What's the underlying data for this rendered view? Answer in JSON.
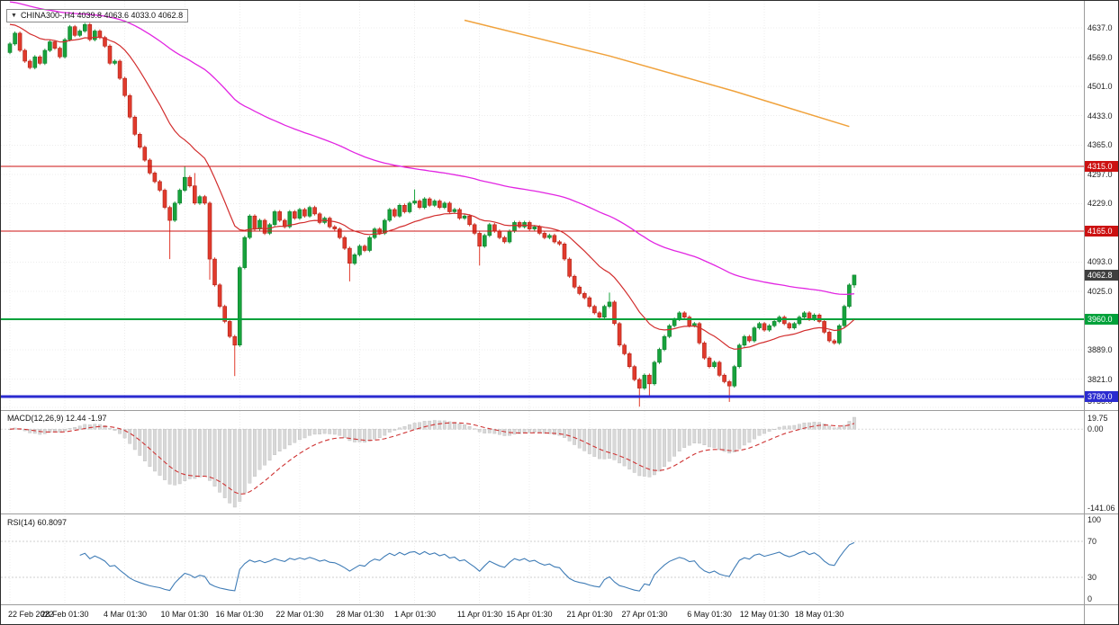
{
  "chart": {
    "symbol": "CHINA300-",
    "timeframe": "H4",
    "marker": "▼",
    "title_text": "CHINA300-,H4 4039.8 4063.6 4033.0 4062.8"
  },
  "chart_data": {
    "type": "candlestick",
    "title": "CHINA300- H4 candlestick chart with MACD and RSI sub-panels",
    "last_bar": {
      "open": 4039.8,
      "high": 4063.6,
      "low": 4033.0,
      "close": 4062.8
    },
    "y_range": [
      3749,
      4700
    ],
    "first_open": 4580,
    "closes": [
      4600,
      4625,
      4585,
      4560,
      4545,
      4570,
      4555,
      4585,
      4605,
      4590,
      4570,
      4610,
      4640,
      4620,
      4630,
      4645,
      4610,
      4630,
      4615,
      4595,
      4555,
      4560,
      4520,
      4480,
      4430,
      4390,
      4360,
      4330,
      4300,
      4280,
      4260,
      4220,
      4190,
      4230,
      4260,
      4290,
      4270,
      4230,
      4245,
      4230,
      4100,
      4040,
      3990,
      3955,
      3920,
      3900,
      4080,
      4150,
      4200,
      4170,
      4190,
      4160,
      4180,
      4210,
      4190,
      4175,
      4210,
      4195,
      4215,
      4200,
      4220,
      4205,
      4185,
      4195,
      4175,
      4170,
      4150,
      4125,
      4090,
      4110,
      4130,
      4120,
      4150,
      4170,
      4160,
      4190,
      4215,
      4200,
      4225,
      4210,
      4230,
      4235,
      4220,
      4240,
      4225,
      4235,
      4220,
      4230,
      4210,
      4215,
      4195,
      4200,
      4180,
      4160,
      4130,
      4155,
      4180,
      4165,
      4150,
      4140,
      4165,
      4185,
      4175,
      4185,
      4170,
      4175,
      4160,
      4150,
      4155,
      4140,
      4135,
      4100,
      4060,
      4035,
      4020,
      4010,
      3990,
      3975,
      3965,
      3990,
      4000,
      3950,
      3900,
      3880,
      3850,
      3820,
      3800,
      3830,
      3810,
      3860,
      3890,
      3920,
      3945,
      3960,
      3975,
      3965,
      3945,
      3950,
      3905,
      3870,
      3850,
      3860,
      3830,
      3815,
      3805,
      3850,
      3900,
      3920,
      3910,
      3940,
      3950,
      3935,
      3945,
      3955,
      3965,
      3950,
      3940,
      3950,
      3965,
      3975,
      3960,
      3970,
      3955,
      3930,
      3910,
      3905,
      3945,
      3990,
      4039.8,
      4062.8
    ],
    "wick_overrides": {
      "32": {
        "low": 4100
      },
      "35": {
        "high": 4316
      },
      "37": {
        "high": 4300
      },
      "40": {
        "low": 4052
      },
      "45": {
        "low": 3828
      },
      "68": {
        "low": 4048
      },
      "81": {
        "high": 4262
      },
      "94": {
        "low": 4085
      },
      "120": {
        "high": 4022
      },
      "126": {
        "low": 3757
      },
      "128": {
        "low": 3782
      },
      "144": {
        "low": 3768
      },
      "169": {
        "high": 4063.6,
        "low": 4033.0
      }
    },
    "price_ticks": [
      4637,
      4569,
      4501,
      4433,
      4365,
      4297,
      4229,
      4093,
      4025,
      3889,
      3821,
      3755
    ],
    "hlines": [
      {
        "price": 4315,
        "label": "4315.0",
        "color_key": "hline_red",
        "width": 1
      },
      {
        "price": 4165,
        "label": "4165.0",
        "color_key": "hline_red",
        "width": 1
      },
      {
        "price": 3960,
        "label": "3960.0",
        "color_key": "hline_green",
        "width": 2
      },
      {
        "price": 3780,
        "label": "3780.0",
        "color_key": "hline_blue",
        "width": 3
      }
    ],
    "current_price": {
      "price": 4062.8,
      "label": "4062.8"
    },
    "ma_fast": {
      "period": 21,
      "seed": 4650
    },
    "ma_slow": {
      "period": 90,
      "seed": 4700
    },
    "orange_line_points": [
      [
        91,
        4655
      ],
      [
        120,
        4572
      ],
      [
        145,
        4490
      ],
      [
        168,
        4408
      ]
    ],
    "time_labels": [
      {
        "text": "22 Feb 2022",
        "index": 0
      },
      {
        "text": "28 Feb 01:30",
        "index": 11
      },
      {
        "text": "4 Mar 01:30",
        "index": 23
      },
      {
        "text": "10 Mar 01:30",
        "index": 35
      },
      {
        "text": "16 Mar 01:30",
        "index": 46
      },
      {
        "text": "22 Mar 01:30",
        "index": 58
      },
      {
        "text": "28 Mar 01:30",
        "index": 70
      },
      {
        "text": "1 Apr 01:30",
        "index": 81
      },
      {
        "text": "11 Apr 01:30",
        "index": 94
      },
      {
        "text": "15 Apr 01:30",
        "index": 104
      },
      {
        "text": "21 Apr 01:30",
        "index": 116
      },
      {
        "text": "27 Apr 01:30",
        "index": 127
      },
      {
        "text": "6 May 01:30",
        "index": 140
      },
      {
        "text": "12 May 01:30",
        "index": 151
      },
      {
        "text": "18 May 01:30",
        "index": 162
      }
    ]
  },
  "macd": {
    "label": "MACD(12,26,9) 12.44 -1.97",
    "params": {
      "fast": 12,
      "slow": 26,
      "signal": 9
    },
    "value": 12.44,
    "signal_value": -1.97,
    "axis": [
      {
        "text": "19.75",
        "value": 19.75
      },
      {
        "text": "0.00",
        "value": 0
      },
      {
        "text": "-141.06",
        "value": -141.06
      }
    ]
  },
  "rsi": {
    "label": "RSI(14) 60.8097",
    "period": 14,
    "value": 60.8097,
    "levels": [
      30,
      70
    ],
    "axis": [
      {
        "text": "100",
        "value": 100
      },
      {
        "text": "70",
        "value": 70
      },
      {
        "text": "30",
        "value": 30
      },
      {
        "text": "0",
        "value": 0
      }
    ]
  },
  "colors": {
    "candle_up": "#17a33c",
    "candle_up_border": "#0d7c2b",
    "candle_down": "#e13a2c",
    "candle_down_border": "#ad2318",
    "ma_fast": "#d22d2d",
    "ma_slow": "#e225e2",
    "ma_long": "#f0a23c",
    "hline_red": "#cc1111",
    "hline_green": "#00a13a",
    "hline_blue": "#2b2bd0",
    "current_price_badge": "#3f3f3f",
    "macd_histogram": "#d8d8d8",
    "macd_histogram_border": "#bdbdbd",
    "macd_signal": "#cf3434",
    "rsi_line": "#3f7cb6",
    "grid": "#ececec",
    "panel_divider": "#9c9c9c",
    "axis_text": "#1c1c1c"
  }
}
